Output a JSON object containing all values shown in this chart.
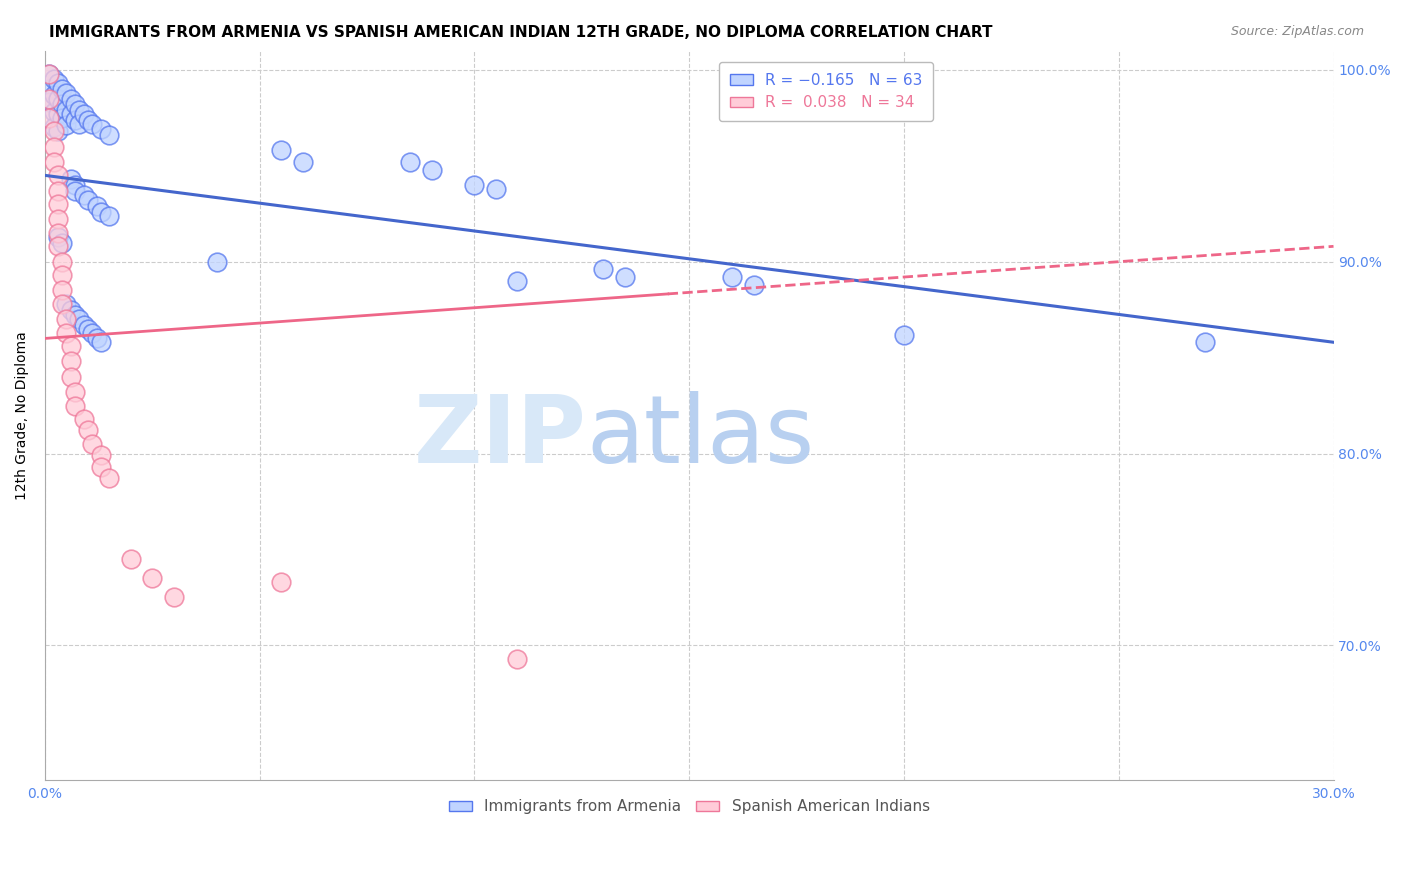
{
  "title": "IMMIGRANTS FROM ARMENIA VS SPANISH AMERICAN INDIAN 12TH GRADE, NO DIPLOMA CORRELATION CHART",
  "source": "Source: ZipAtlas.com",
  "ylabel": "12th Grade, No Diploma",
  "x_min": 0.0,
  "x_max": 0.3,
  "y_min": 0.63,
  "y_max": 1.01,
  "x_ticks": [
    0.0,
    0.05,
    0.1,
    0.15,
    0.2,
    0.25,
    0.3
  ],
  "x_tick_labels": [
    "0.0%",
    "",
    "",
    "",
    "",
    "",
    "30.0%"
  ],
  "y_ticks": [
    0.7,
    0.8,
    0.9,
    1.0
  ],
  "y_tick_labels": [
    "70.0%",
    "80.0%",
    "90.0%",
    "100.0%"
  ],
  "blue_scatter": [
    [
      0.001,
      0.998
    ],
    [
      0.001,
      0.99
    ],
    [
      0.001,
      0.983
    ],
    [
      0.002,
      0.995
    ],
    [
      0.002,
      0.987
    ],
    [
      0.002,
      0.978
    ],
    [
      0.002,
      0.97
    ],
    [
      0.003,
      0.993
    ],
    [
      0.003,
      0.985
    ],
    [
      0.003,
      0.977
    ],
    [
      0.003,
      0.968
    ],
    [
      0.004,
      0.99
    ],
    [
      0.004,
      0.982
    ],
    [
      0.004,
      0.975
    ],
    [
      0.005,
      0.988
    ],
    [
      0.005,
      0.979
    ],
    [
      0.005,
      0.971
    ],
    [
      0.006,
      0.985
    ],
    [
      0.006,
      0.977
    ],
    [
      0.007,
      0.982
    ],
    [
      0.007,
      0.974
    ],
    [
      0.008,
      0.979
    ],
    [
      0.008,
      0.972
    ],
    [
      0.009,
      0.977
    ],
    [
      0.01,
      0.974
    ],
    [
      0.011,
      0.972
    ],
    [
      0.013,
      0.969
    ],
    [
      0.015,
      0.966
    ],
    [
      0.006,
      0.943
    ],
    [
      0.007,
      0.94
    ],
    [
      0.007,
      0.937
    ],
    [
      0.009,
      0.935
    ],
    [
      0.01,
      0.932
    ],
    [
      0.012,
      0.929
    ],
    [
      0.013,
      0.926
    ],
    [
      0.015,
      0.924
    ],
    [
      0.003,
      0.913
    ],
    [
      0.004,
      0.91
    ],
    [
      0.005,
      0.878
    ],
    [
      0.006,
      0.875
    ],
    [
      0.007,
      0.872
    ],
    [
      0.008,
      0.87
    ],
    [
      0.009,
      0.867
    ],
    [
      0.01,
      0.865
    ],
    [
      0.011,
      0.863
    ],
    [
      0.012,
      0.86
    ],
    [
      0.013,
      0.858
    ],
    [
      0.04,
      0.9
    ],
    [
      0.055,
      0.958
    ],
    [
      0.06,
      0.952
    ],
    [
      0.085,
      0.952
    ],
    [
      0.09,
      0.948
    ],
    [
      0.1,
      0.94
    ],
    [
      0.105,
      0.938
    ],
    [
      0.11,
      0.89
    ],
    [
      0.13,
      0.896
    ],
    [
      0.135,
      0.892
    ],
    [
      0.16,
      0.892
    ],
    [
      0.165,
      0.888
    ],
    [
      0.2,
      0.862
    ],
    [
      0.27,
      0.858
    ]
  ],
  "pink_scatter": [
    [
      0.001,
      0.998
    ],
    [
      0.001,
      0.985
    ],
    [
      0.001,
      0.975
    ],
    [
      0.002,
      0.968
    ],
    [
      0.002,
      0.96
    ],
    [
      0.002,
      0.952
    ],
    [
      0.003,
      0.945
    ],
    [
      0.003,
      0.937
    ],
    [
      0.003,
      0.93
    ],
    [
      0.003,
      0.922
    ],
    [
      0.003,
      0.915
    ],
    [
      0.003,
      0.908
    ],
    [
      0.004,
      0.9
    ],
    [
      0.004,
      0.893
    ],
    [
      0.004,
      0.885
    ],
    [
      0.004,
      0.878
    ],
    [
      0.005,
      0.87
    ],
    [
      0.005,
      0.863
    ],
    [
      0.006,
      0.856
    ],
    [
      0.006,
      0.848
    ],
    [
      0.006,
      0.84
    ],
    [
      0.007,
      0.832
    ],
    [
      0.007,
      0.825
    ],
    [
      0.009,
      0.818
    ],
    [
      0.01,
      0.812
    ],
    [
      0.011,
      0.805
    ],
    [
      0.013,
      0.799
    ],
    [
      0.013,
      0.793
    ],
    [
      0.015,
      0.787
    ],
    [
      0.02,
      0.745
    ],
    [
      0.025,
      0.735
    ],
    [
      0.03,
      0.725
    ],
    [
      0.055,
      0.733
    ],
    [
      0.11,
      0.693
    ]
  ],
  "blue_line_x": [
    0.0,
    0.3
  ],
  "blue_line_y": [
    0.945,
    0.858
  ],
  "pink_line_x": [
    0.0,
    0.3
  ],
  "pink_line_y": [
    0.86,
    0.908
  ],
  "pink_line_dashed_start": 0.145,
  "blue_color_face": "#c0d4ff",
  "blue_color_edge": "#5577ee",
  "pink_color_face": "#ffccd8",
  "pink_color_edge": "#ee7799",
  "blue_line_color": "#4466cc",
  "pink_line_color": "#ee6688",
  "watermark_zip": "ZIP",
  "watermark_atlas": "atlas",
  "background_color": "#ffffff",
  "grid_color": "#cccccc",
  "axis_color": "#5588ee",
  "title_fontsize": 11,
  "axis_label_fontsize": 10
}
